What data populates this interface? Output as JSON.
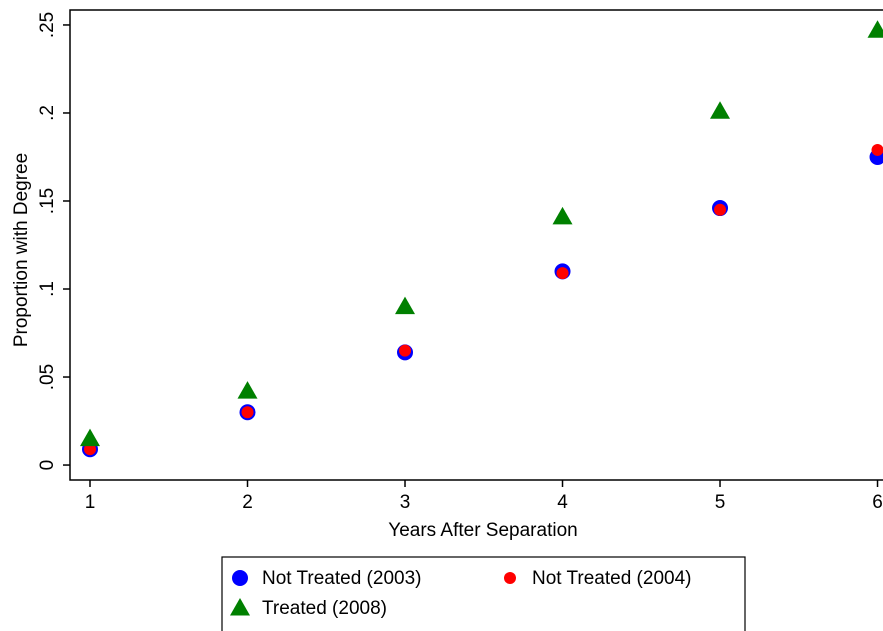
{
  "chart_data": {
    "type": "scatter",
    "x_label": "Years After Separation",
    "y_label": "Proportion with Degree",
    "x": [
      1,
      2,
      3,
      4,
      5,
      6
    ],
    "series": [
      {
        "name": "Not Treated (2003)",
        "color": "#0000ff",
        "marker": "circle",
        "values": [
          0.009,
          0.03,
          0.064,
          0.11,
          0.146,
          0.175
        ]
      },
      {
        "name": "Not Treated (2004)",
        "color": "#ff0000",
        "marker": "small-circle",
        "values": [
          0.009,
          0.03,
          0.065,
          0.109,
          0.145,
          0.179
        ]
      },
      {
        "name": "Treated (2008)",
        "color": "#008000",
        "marker": "triangle",
        "values": [
          0.015,
          0.042,
          0.09,
          0.141,
          0.201,
          0.247
        ]
      }
    ],
    "xlim": [
      0.873,
      6.13
    ],
    "ylim": [
      -0.0085,
      0.2585
    ],
    "xticks": [
      1,
      2,
      3,
      4,
      5,
      6
    ],
    "yticks": [
      0,
      {
        "value": 0.05,
        "label": ".05"
      },
      {
        "value": 0.1,
        "label": ".1"
      },
      {
        "value": 0.15,
        "label": ".15"
      },
      {
        "value": 0.2,
        "label": ".2"
      },
      {
        "value": 0.25,
        "label": ".25"
      }
    ],
    "grid": false,
    "legend": "bottom"
  }
}
